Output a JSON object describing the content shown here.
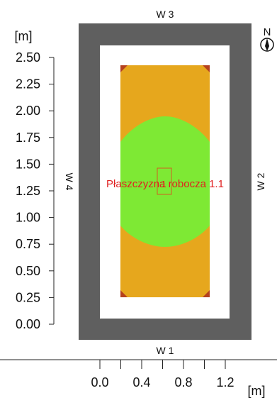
{
  "walls": {
    "top": "W 3",
    "bottom": "W 1",
    "left": "W 4",
    "right": "W 2"
  },
  "north": {
    "label": "N",
    "icon": "compass-icon"
  },
  "y_axis": {
    "unit": "[m]",
    "ticks": [
      "2.50",
      "2.25",
      "2.00",
      "1.75",
      "1.50",
      "1.25",
      "1.00",
      "0.75",
      "0.50",
      "0.25",
      "0.00"
    ]
  },
  "x_axis": {
    "unit": "[m]",
    "ticks": [
      "0.0",
      "0.4",
      "0.8",
      "1.2"
    ]
  },
  "work_plane": {
    "label": "Płaszczyzna robocza 1.1",
    "marker": "1"
  },
  "colors": {
    "wall": "#5f5f5f",
    "floor": "#ffffff",
    "orange_zone": "#e6a71d",
    "green_zone": "#7ee934",
    "corner": "#b5411e",
    "label": "#e02020"
  }
}
